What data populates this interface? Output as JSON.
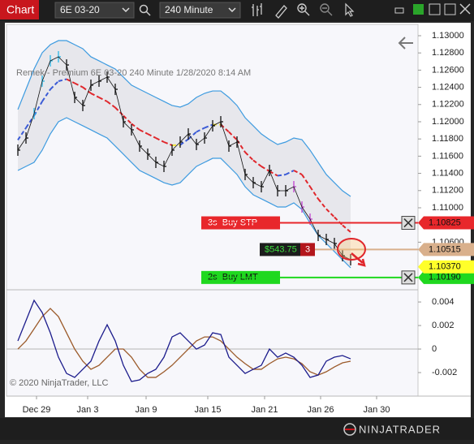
{
  "toolbar": {
    "tab": "Chart",
    "instrument": "6E 03-20",
    "interval": "240 Minute"
  },
  "chart": {
    "caption": "Remek - Premium  6E 03-20  240 Minute  1/28/2020 8:14 AM",
    "copyright": "© 2020 NinjaTrader, LLC",
    "dates": [
      "Dec 29",
      "Jan 3",
      "Jan 9",
      "Jan 15",
      "Jan 21",
      "Jan 26",
      "Jan 30"
    ],
    "ylim": [
      1.10047,
      1.13132
    ],
    "yticks": [
      {
        "value": 1.13,
        "label": "1.13000"
      },
      {
        "value": 1.128,
        "label": "1.12800"
      },
      {
        "value": 1.126,
        "label": "1.12600"
      },
      {
        "value": 1.124,
        "label": "1.12400"
      },
      {
        "value": 1.122,
        "label": "1.12200"
      },
      {
        "value": 1.12,
        "label": "1.12000"
      },
      {
        "value": 1.118,
        "label": "1.11800"
      },
      {
        "value": 1.116,
        "label": "1.11600"
      },
      {
        "value": 1.114,
        "label": "1.11400"
      },
      {
        "value": 1.112,
        "label": "1.11200"
      },
      {
        "value": 1.11,
        "label": "1.11000"
      },
      {
        "value": 1.106,
        "label": "1.10600"
      }
    ],
    "close": [
      1.1167,
      1.11811,
      1.12094,
      1.12472,
      1.12708,
      1.12755,
      1.1266,
      1.12283,
      1.12189,
      1.12425,
      1.12472,
      1.12519,
      1.12377,
      1.12,
      1.11906,
      1.11717,
      1.11623,
      1.11528,
      1.11481,
      1.1167,
      1.11764,
      1.11858,
      1.11736,
      1.11811,
      1.11953,
      1.12,
      1.11717,
      1.11764,
      1.11387,
      1.11292,
      1.11245,
      1.11434,
      1.11198,
      1.11198,
      1.11245,
      1.11009,
      1.10868,
      1.10679,
      1.10632,
      1.10585,
      1.10443,
      1.10396
    ],
    "upper_band": [
      1.12142,
      1.12377,
      1.12613,
      1.12802,
      1.12896,
      1.12943,
      1.12943,
      1.12896,
      1.12849,
      1.12755,
      1.12708,
      1.1266,
      1.12613,
      1.12519,
      1.12425,
      1.12377,
      1.1233,
      1.12283,
      1.12236,
      1.12189,
      1.1217,
      1.12208,
      1.12283,
      1.1233,
      1.12358,
      1.12358,
      1.12283,
      1.12189,
      1.12047,
      1.11953,
      1.11858,
      1.11792,
      1.11736,
      1.11764,
      1.11811,
      1.11792,
      1.1167,
      1.11528,
      1.11387,
      1.11292,
      1.11198,
      1.11132
    ],
    "lower_band": [
      1.11434,
      1.11481,
      1.11528,
      1.1167,
      1.11858,
      1.12,
      1.12047,
      1.12,
      1.11953,
      1.11906,
      1.11858,
      1.11811,
      1.11717,
      1.11623,
      1.11528,
      1.11434,
      1.11387,
      1.1134,
      1.11292,
      1.11264,
      1.11292,
      1.11387,
      1.11481,
      1.11528,
      1.11575,
      1.11575,
      1.11481,
      1.11387,
      1.11245,
      1.11151,
      1.11104,
      1.11057,
      1.11009,
      1.11009,
      1.11057,
      1.10981,
      1.10821,
      1.10679,
      1.10585,
      1.10491,
      1.10396,
      1.10302
    ],
    "orders": [
      {
        "label": "3s  Buy STP",
        "color": "#e8272b",
        "price": {
          "value": 1.10825,
          "label": "1.10825"
        }
      },
      {
        "label": "2s  Buy LMT",
        "color": "#1fd81f",
        "price": {
          "value": 1.1019,
          "label": "1.10190"
        }
      }
    ],
    "position": {
      "pnl": "$543.75",
      "quantity": 3,
      "price": {
        "value": 1.10515,
        "label": "1.10515"
      }
    },
    "last_price": {
      "value": 1.1037,
      "label": "1.10370"
    },
    "oscillator": {
      "ylim": [
        -0.004,
        0.00497
      ],
      "yticks": [
        0.004,
        0.002,
        0,
        -0.002
      ],
      "fast": [
        0.00069,
        0.00241,
        0.00414,
        0.0031,
        0.00138,
        -0.00069,
        -0.00207,
        -0.00241,
        -0.00172,
        -0.00103,
        0.00069,
        0.00207,
        0.00069,
        -0.00138,
        -0.00276,
        -0.00262,
        -0.00207,
        -0.00172,
        -0.00069,
        0.00103,
        0.00138,
        0.00069,
        0,
        0.00034,
        0.00138,
        0.00124,
        -0.00069,
        -0.00138,
        -0.00207,
        -0.00172,
        -0.00138,
        0,
        -0.00069,
        -0.00034,
        -0.00069,
        -0.00138,
        -0.00241,
        -0.00221,
        -0.00103,
        -0.00069,
        -0.00055,
        -0.00083
      ],
      "slow": [
        0,
        0.00069,
        0.00172,
        0.00276,
        0.00345,
        0.00276,
        0.00138,
        0,
        -0.00103,
        -0.00172,
        -0.00138,
        -0.00069,
        0,
        0,
        -0.00069,
        -0.00172,
        -0.00241,
        -0.00241,
        -0.00193,
        -0.00138,
        -0.00069,
        0,
        0.00069,
        0.00103,
        0.00103,
        0.00069,
        0,
        -0.00069,
        -0.00124,
        -0.00172,
        -0.00172,
        -0.00124,
        -0.00083,
        -0.00069,
        -0.00083,
        -0.00124,
        -0.00193,
        -0.00221,
        -0.00193,
        -0.00152,
        -0.00117,
        -0.00103
      ]
    }
  },
  "footer": {
    "brand": "NINJATRADER"
  }
}
